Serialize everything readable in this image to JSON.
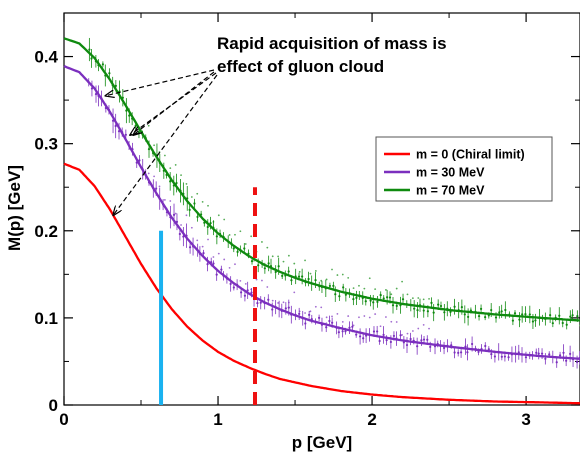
{
  "chart_data": {
    "type": "line",
    "title": "",
    "xlabel": "p [GeV]",
    "ylabel": "M(p) [GeV]",
    "xlim": [
      0,
      3.35
    ],
    "ylim": [
      0,
      0.45
    ],
    "x_ticks": [
      0,
      1,
      2,
      3
    ],
    "x_tick_labels": [
      "0",
      "1",
      "2",
      "3"
    ],
    "y_ticks": [
      0,
      0.1,
      0.2,
      0.3,
      0.4
    ],
    "y_tick_labels": [
      "0",
      "0.1",
      "0.2",
      "0.3",
      "0.4"
    ],
    "grid": false,
    "legend_position": "right",
    "annotation": {
      "lines": [
        "Rapid acquisition of mass is",
        "effect of gluon cloud"
      ],
      "arrow_targets": [
        {
          "x": 0.27,
          "y": 0.355
        },
        {
          "x": 0.45,
          "y": 0.31
        },
        {
          "x": 0.43,
          "y": 0.31
        },
        {
          "x": 0.32,
          "y": 0.218
        }
      ]
    },
    "series": [
      {
        "name": "m = 0 (Chiral limit)",
        "color": "#ff0000",
        "x": [
          0,
          0.1,
          0.2,
          0.3,
          0.4,
          0.5,
          0.6,
          0.7,
          0.8,
          0.9,
          1.0,
          1.1,
          1.2,
          1.3,
          1.4,
          1.5,
          1.6,
          1.8,
          2.0,
          2.2,
          2.5,
          2.8,
          3.1,
          3.35
        ],
        "y": [
          0.277,
          0.27,
          0.251,
          0.224,
          0.193,
          0.162,
          0.134,
          0.11,
          0.09,
          0.074,
          0.061,
          0.051,
          0.043,
          0.036,
          0.03,
          0.026,
          0.022,
          0.016,
          0.012,
          0.009,
          0.006,
          0.004,
          0.003,
          0.002
        ]
      },
      {
        "name": "m = 30 MeV",
        "color": "#7b2fbe",
        "x": [
          0,
          0.1,
          0.2,
          0.3,
          0.4,
          0.5,
          0.6,
          0.7,
          0.8,
          0.9,
          1.0,
          1.1,
          1.2,
          1.3,
          1.4,
          1.5,
          1.6,
          1.8,
          2.0,
          2.2,
          2.5,
          2.8,
          3.1,
          3.35
        ],
        "y": [
          0.389,
          0.382,
          0.363,
          0.336,
          0.305,
          0.273,
          0.243,
          0.215,
          0.191,
          0.171,
          0.154,
          0.14,
          0.128,
          0.118,
          0.11,
          0.103,
          0.097,
          0.088,
          0.08,
          0.074,
          0.067,
          0.061,
          0.056,
          0.053
        ]
      },
      {
        "name": "m = 70 MeV",
        "color": "#0f8a0f",
        "x": [
          0,
          0.1,
          0.2,
          0.3,
          0.4,
          0.5,
          0.6,
          0.7,
          0.8,
          0.9,
          1.0,
          1.1,
          1.2,
          1.3,
          1.4,
          1.5,
          1.6,
          1.8,
          2.0,
          2.2,
          2.5,
          2.8,
          3.1,
          3.35
        ],
        "y": [
          0.421,
          0.415,
          0.398,
          0.373,
          0.344,
          0.314,
          0.285,
          0.258,
          0.234,
          0.214,
          0.197,
          0.183,
          0.171,
          0.161,
          0.153,
          0.146,
          0.14,
          0.13,
          0.122,
          0.116,
          0.109,
          0.104,
          0.1,
          0.097
        ]
      }
    ],
    "vertical_markers": [
      {
        "x": 0.63,
        "y_range": [
          0,
          0.2
        ],
        "style": "solid",
        "color": "#1ab2f0"
      },
      {
        "x": 1.24,
        "y_range": [
          0,
          0.25
        ],
        "style": "dashed",
        "color": "#ee1111"
      }
    ]
  }
}
